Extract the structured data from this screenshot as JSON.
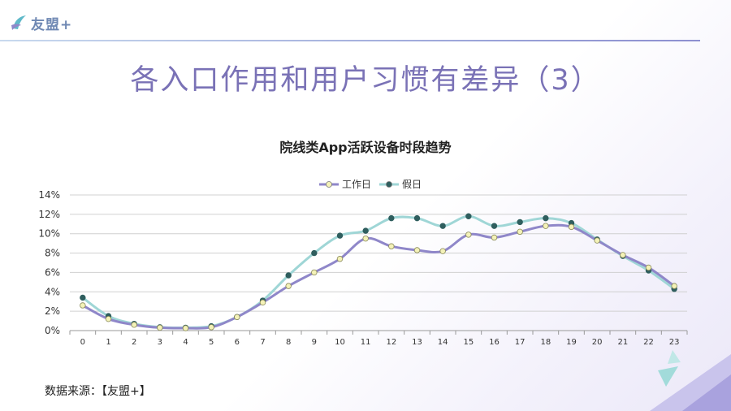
{
  "brand": {
    "name": "友盟+",
    "accent": "#7a72b6"
  },
  "page_title": "各入口作用和用户习惯有差异（3）",
  "source": "数据来源：【友盟+】",
  "chart_data": {
    "type": "line",
    "title": "院线类App活跃设备时段趋势",
    "xlabel": "",
    "ylabel": "",
    "categories": [
      "0",
      "1",
      "2",
      "3",
      "4",
      "5",
      "6",
      "7",
      "8",
      "9",
      "10",
      "11",
      "12",
      "13",
      "14",
      "15",
      "16",
      "17",
      "18",
      "19",
      "20",
      "21",
      "22",
      "23"
    ],
    "y_ticks": [
      "0%",
      "2%",
      "4%",
      "6%",
      "8%",
      "10%",
      "12%",
      "14%"
    ],
    "ylim": [
      0,
      14
    ],
    "grid": true,
    "legend_position": "top",
    "series": [
      {
        "name": "工作日",
        "color": "#8f87c9",
        "marker": "#f4f2b8",
        "values": [
          2.6,
          1.2,
          0.6,
          0.3,
          0.25,
          0.35,
          1.4,
          2.9,
          4.6,
          6.0,
          7.4,
          9.5,
          8.7,
          8.3,
          8.2,
          9.9,
          9.6,
          10.2,
          10.8,
          10.7,
          9.3,
          7.8,
          6.5,
          4.6
        ]
      },
      {
        "name": "假日",
        "color": "#9fd6d6",
        "marker": "#2f5e5e",
        "values": [
          3.4,
          1.5,
          0.7,
          0.35,
          0.3,
          0.45,
          1.4,
          3.1,
          5.7,
          8.0,
          9.8,
          10.3,
          11.6,
          11.6,
          10.8,
          11.8,
          10.8,
          11.2,
          11.6,
          11.1,
          9.4,
          7.7,
          6.2,
          4.3
        ]
      }
    ]
  }
}
